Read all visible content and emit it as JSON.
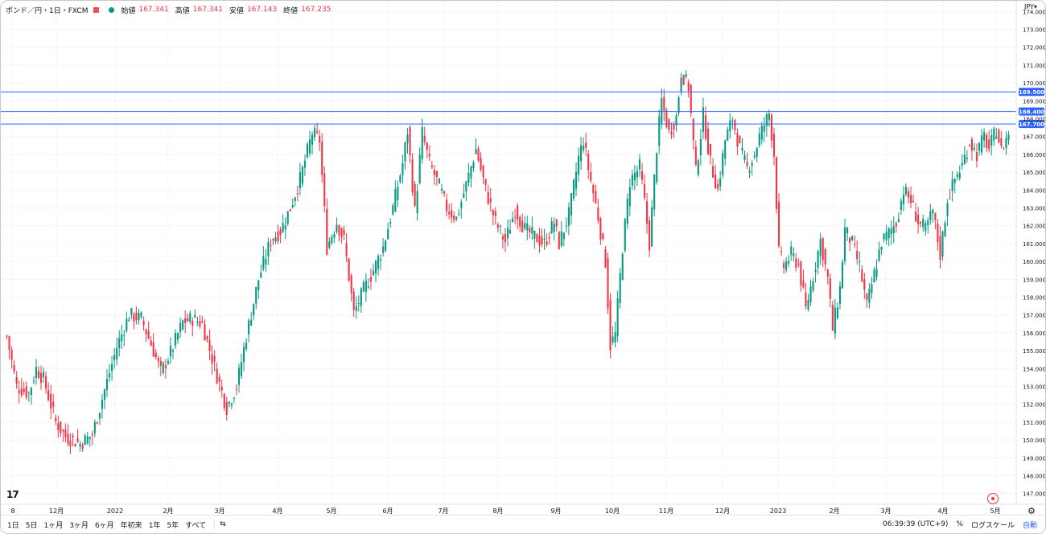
{
  "header": {
    "symbol": "ポンド／円・1日・FXCM",
    "open_label": "始値",
    "open_value": "167.341",
    "high_label": "高値",
    "high_value": "167.341",
    "low_label": "安値",
    "low_value": "167.143",
    "close_label": "終値",
    "close_value": "167.235",
    "currency": "JPY"
  },
  "colors": {
    "up": "#089981",
    "down": "#f23645",
    "hline": "#2962ff",
    "label_bg": "#2962ff"
  },
  "chart_data": {
    "type": "candlestick",
    "ylim": [
      146.4,
      174.6
    ],
    "y_ticks": [
      "147.000",
      "148.000",
      "149.000",
      "150.000",
      "151.000",
      "152.000",
      "153.000",
      "154.000",
      "155.000",
      "156.000",
      "157.000",
      "158.000",
      "159.000",
      "160.000",
      "161.000",
      "162.000",
      "163.000",
      "164.000",
      "165.000",
      "166.000",
      "167.000",
      "168.000",
      "169.000",
      "170.000",
      "171.000",
      "172.000",
      "173.000",
      "174.000"
    ],
    "x_ticks": [
      "8",
      "12月",
      "2022",
      "2月",
      "3月",
      "4月",
      "5月",
      "6月",
      "7月",
      "8月",
      "9月",
      "10月",
      "11月",
      "12月",
      "2023",
      "2月",
      "3月",
      "4月",
      "5月"
    ],
    "horizontal_lines": [
      {
        "value": 169.5,
        "label": "169.500"
      },
      {
        "value": 168.4,
        "label": "168.400"
      },
      {
        "value": 167.7,
        "label": "167.700"
      }
    ],
    "anchors": [
      [
        0,
        155.8
      ],
      [
        4,
        153.0
      ],
      [
        9,
        152.6
      ],
      [
        12,
        154.0
      ],
      [
        15,
        153.4
      ],
      [
        20,
        151.0
      ],
      [
        24,
        150.2
      ],
      [
        30,
        149.8
      ],
      [
        35,
        150.3
      ],
      [
        40,
        152.8
      ],
      [
        45,
        155.2
      ],
      [
        50,
        157.0
      ],
      [
        55,
        156.8
      ],
      [
        60,
        155.0
      ],
      [
        63,
        153.8
      ],
      [
        67,
        154.9
      ],
      [
        72,
        156.6
      ],
      [
        76,
        156.8
      ],
      [
        80,
        156.5
      ],
      [
        86,
        153.6
      ],
      [
        90,
        151.8
      ],
      [
        94,
        153.0
      ],
      [
        98,
        155.8
      ],
      [
        103,
        159.0
      ],
      [
        108,
        161.2
      ],
      [
        112,
        161.7
      ],
      [
        116,
        163.0
      ],
      [
        120,
        164.6
      ],
      [
        125,
        167.2
      ],
      [
        128,
        166.8
      ],
      [
        131,
        160.8
      ],
      [
        135,
        162.2
      ],
      [
        138,
        161.2
      ],
      [
        142,
        157.1
      ],
      [
        146,
        158.4
      ],
      [
        150,
        159.5
      ],
      [
        154,
        160.8
      ],
      [
        158,
        163.0
      ],
      [
        162,
        165.5
      ],
      [
        164,
        167.3
      ],
      [
        167,
        162.8
      ],
      [
        170,
        167.2
      ],
      [
        173,
        165.5
      ],
      [
        177,
        164.2
      ],
      [
        180,
        163.0
      ],
      [
        184,
        162.4
      ],
      [
        188,
        164.3
      ],
      [
        192,
        166.3
      ],
      [
        196,
        164.0
      ],
      [
        200,
        162.2
      ],
      [
        204,
        161.1
      ],
      [
        208,
        162.9
      ],
      [
        212,
        161.8
      ],
      [
        216,
        161.4
      ],
      [
        220,
        161.0
      ],
      [
        224,
        162.2
      ],
      [
        226,
        161.0
      ],
      [
        230,
        162.6
      ],
      [
        234,
        165.8
      ],
      [
        236,
        166.8
      ],
      [
        238,
        165.2
      ],
      [
        242,
        162.5
      ],
      [
        245,
        160.0
      ],
      [
        247,
        155.3
      ],
      [
        249,
        155.9
      ],
      [
        252,
        160.8
      ],
      [
        255,
        164.5
      ],
      [
        259,
        165.3
      ],
      [
        261,
        163.3
      ],
      [
        263,
        161.0
      ],
      [
        266,
        166.4
      ],
      [
        268,
        169.0
      ],
      [
        271,
        167.2
      ],
      [
        274,
        168.1
      ],
      [
        276,
        170.6
      ],
      [
        279,
        169.8
      ],
      [
        282,
        165.0
      ],
      [
        285,
        168.2
      ],
      [
        288,
        165.5
      ],
      [
        291,
        164.0
      ],
      [
        294,
        166.8
      ],
      [
        297,
        168.0
      ],
      [
        300,
        166.3
      ],
      [
        303,
        165.2
      ],
      [
        306,
        166.0
      ],
      [
        308,
        167.0
      ],
      [
        312,
        168.3
      ],
      [
        314,
        166.0
      ],
      [
        316,
        160.5
      ],
      [
        318,
        159.7
      ],
      [
        321,
        160.4
      ],
      [
        324,
        159.8
      ],
      [
        327,
        157.3
      ],
      [
        330,
        159.2
      ],
      [
        333,
        161.2
      ],
      [
        336,
        159.0
      ],
      [
        338,
        156.2
      ],
      [
        341,
        158.5
      ],
      [
        343,
        161.8
      ],
      [
        346,
        161.0
      ],
      [
        349,
        159.7
      ],
      [
        352,
        157.5
      ],
      [
        355,
        159.3
      ],
      [
        358,
        161.1
      ],
      [
        361,
        161.6
      ],
      [
        364,
        162.2
      ],
      [
        367,
        164.0
      ],
      [
        370,
        163.4
      ],
      [
        373,
        162.2
      ],
      [
        376,
        161.8
      ],
      [
        379,
        162.8
      ],
      [
        382,
        160.4
      ],
      [
        385,
        163.5
      ],
      [
        388,
        164.6
      ],
      [
        391,
        165.4
      ],
      [
        394,
        166.7
      ],
      [
        397,
        166.0
      ],
      [
        400,
        167.0
      ],
      [
        402,
        166.3
      ],
      [
        405,
        167.4
      ],
      [
        407,
        166.2
      ],
      [
        410,
        167.2
      ]
    ]
  },
  "bottom_bar": {
    "ranges": [
      "1日",
      "5日",
      "1ヶ月",
      "3ヶ月",
      "6ヶ月",
      "年初来",
      "1年",
      "5年",
      "すべて"
    ],
    "compare_icon": "calendar-goto-icon",
    "time": "06:39:39 (UTC+9)",
    "percent": "%",
    "log_scale": "ログスケール",
    "auto": "自動"
  }
}
